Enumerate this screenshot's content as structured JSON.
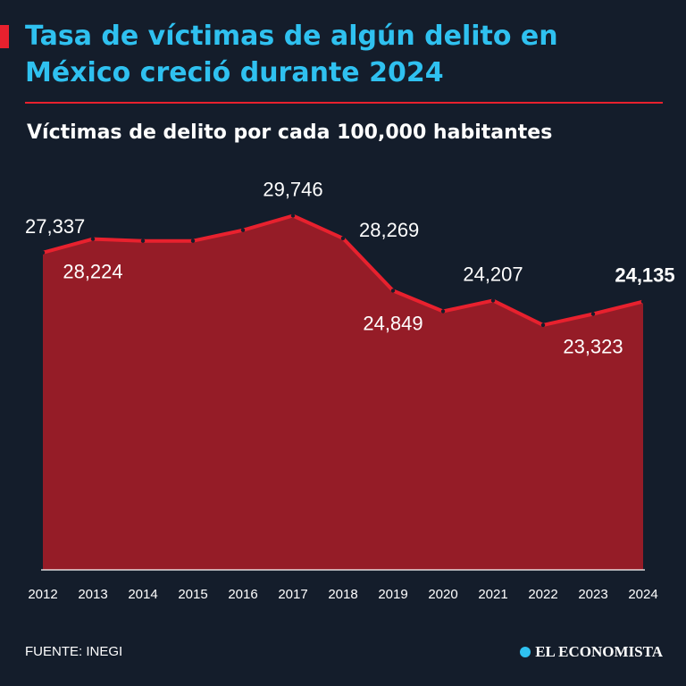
{
  "header": {
    "title": "Tasa de víctimas de algún delito en México creció durante 2024",
    "subtitle": "Víctimas de delito por cada 100,000 habitantes"
  },
  "footer": {
    "source": "FUENTE: INEGI",
    "brand": "EL ECONOMISTA"
  },
  "colors": {
    "background": "#141d2b",
    "accent": "#e8212e",
    "title": "#2fc1f0",
    "area_fill": "#951c27"
  },
  "chart_data": {
    "type": "area",
    "title": "",
    "xlabel": "",
    "ylabel": "",
    "categories": [
      "2012",
      "2013",
      "2014",
      "2015",
      "2016",
      "2017",
      "2018",
      "2019",
      "2020",
      "2021",
      "2022",
      "2023",
      "2024"
    ],
    "series": [
      {
        "values": [
          27337,
          28224,
          28100,
          28100,
          28800,
          29746,
          28269,
          24849,
          23500,
          24207,
          22600,
          23323,
          24135
        ]
      }
    ],
    "data_labels": [
      {
        "index": 0,
        "text": "27,337",
        "position": "above"
      },
      {
        "index": 1,
        "text": "28,224",
        "position": "below"
      },
      {
        "index": 5,
        "text": "29,746",
        "position": "above"
      },
      {
        "index": 6,
        "text": "28,269",
        "position": "right"
      },
      {
        "index": 7,
        "text": "24,849",
        "position": "below"
      },
      {
        "index": 9,
        "text": "24,207",
        "position": "above"
      },
      {
        "index": 11,
        "text": "23,323",
        "position": "below"
      },
      {
        "index": 12,
        "text": "24,135",
        "position": "above",
        "bold": true
      }
    ],
    "ylim": [
      6600,
      31000
    ],
    "grid": false,
    "legend": "none"
  }
}
